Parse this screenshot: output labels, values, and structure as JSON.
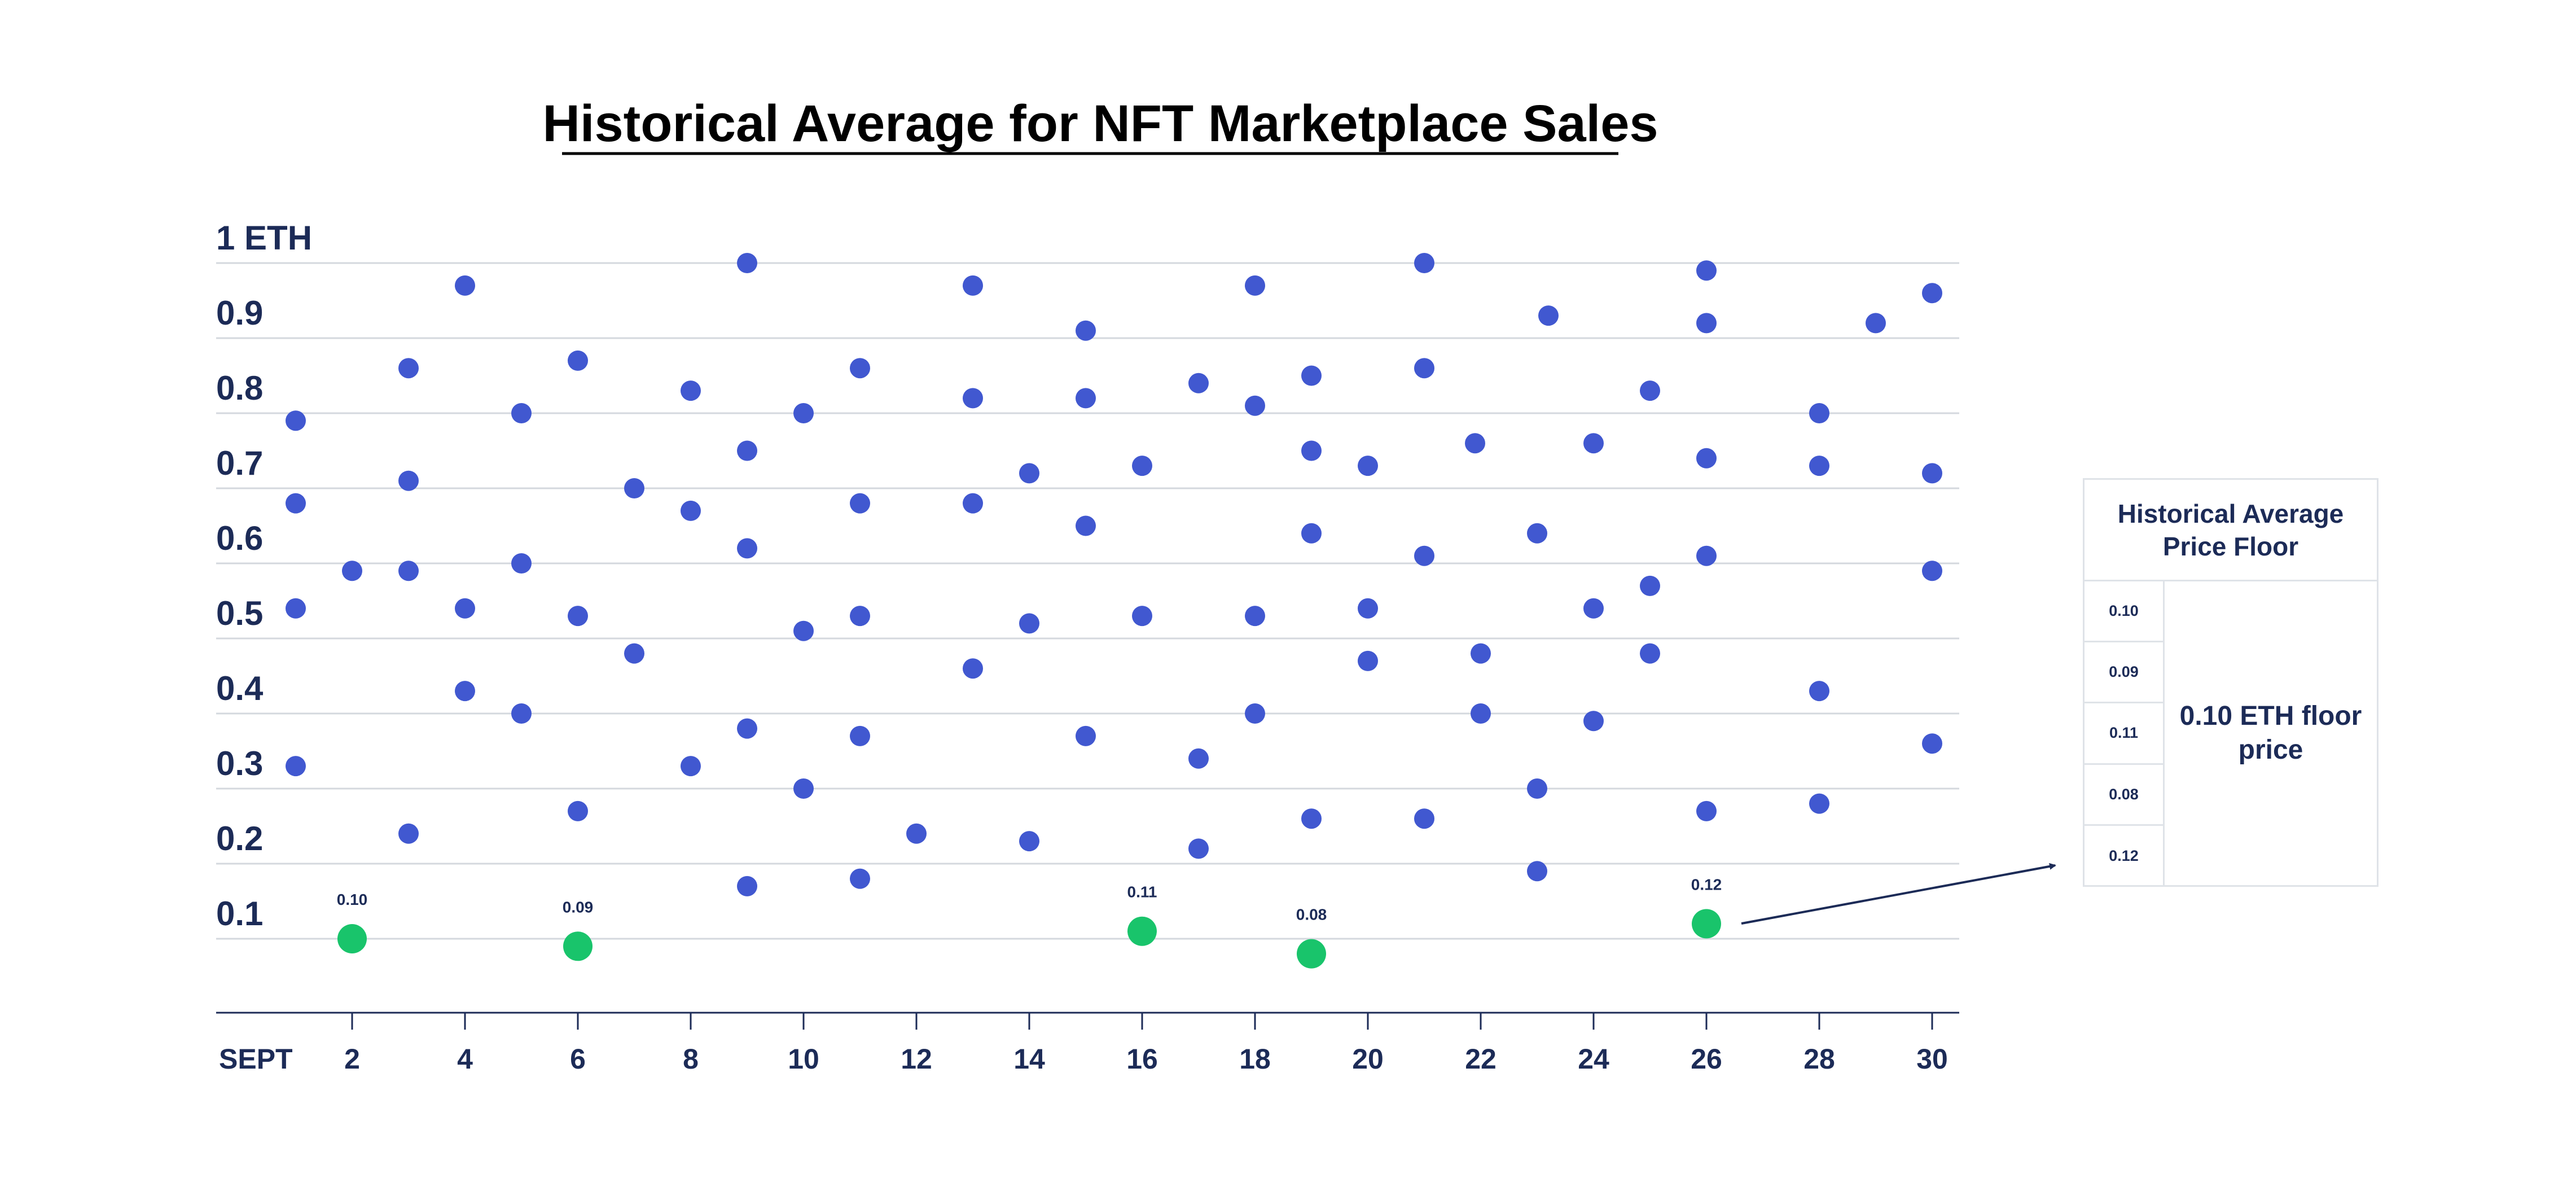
{
  "chart_data": {
    "type": "scatter",
    "title": "Historical Average for NFT Marketplace Sales",
    "y_tick_labels": [
      "1 ETH",
      "0.9",
      "0.8",
      "0.7",
      "0.6",
      "0.5",
      "0.4",
      "0.3",
      "0.2",
      "0.1"
    ],
    "y_tick_values": [
      1.0,
      0.9,
      0.8,
      0.7,
      0.6,
      0.5,
      0.4,
      0.3,
      0.2,
      0.1
    ],
    "x_tick_labels": [
      "SEPT",
      "2",
      "4",
      "6",
      "8",
      "10",
      "12",
      "14",
      "16",
      "18",
      "20",
      "22",
      "24",
      "26",
      "28",
      "30"
    ],
    "x_tick_values": [
      0,
      2,
      4,
      6,
      8,
      10,
      12,
      14,
      16,
      18,
      20,
      22,
      24,
      26,
      28,
      30
    ],
    "xlim": [
      0,
      30
    ],
    "ylim": [
      0,
      1.0
    ],
    "grid": true,
    "colors": {
      "sales": "#4158d0",
      "floor": "#19c46b",
      "text": "#1c2b57",
      "grid": "#d4d8de"
    },
    "series": [
      {
        "points": [
          {
            "x": 1,
            "y": 0.79
          },
          {
            "x": 1,
            "y": 0.68
          },
          {
            "x": 1,
            "y": 0.54
          },
          {
            "x": 1,
            "y": 0.33
          },
          {
            "x": 2,
            "y": 0.59
          },
          {
            "x": 3,
            "y": 0.86
          },
          {
            "x": 3,
            "y": 0.71
          },
          {
            "x": 3,
            "y": 0.59
          },
          {
            "x": 3,
            "y": 0.24
          },
          {
            "x": 4,
            "y": 0.97
          },
          {
            "x": 4,
            "y": 0.54
          },
          {
            "x": 4,
            "y": 0.43
          },
          {
            "x": 5,
            "y": 0.8
          },
          {
            "x": 5,
            "y": 0.6
          },
          {
            "x": 5,
            "y": 0.4
          },
          {
            "x": 6,
            "y": 0.87
          },
          {
            "x": 6,
            "y": 0.53
          },
          {
            "x": 6,
            "y": 0.27
          },
          {
            "x": 7,
            "y": 0.7
          },
          {
            "x": 7,
            "y": 0.48
          },
          {
            "x": 8,
            "y": 0.83
          },
          {
            "x": 8,
            "y": 0.67
          },
          {
            "x": 8,
            "y": 0.33
          },
          {
            "x": 9,
            "y": 1.0
          },
          {
            "x": 9,
            "y": 0.75
          },
          {
            "x": 9,
            "y": 0.62
          },
          {
            "x": 9,
            "y": 0.38
          },
          {
            "x": 9,
            "y": 0.17
          },
          {
            "x": 10,
            "y": 0.8
          },
          {
            "x": 10,
            "y": 0.51
          },
          {
            "x": 10,
            "y": 0.3
          },
          {
            "x": 11,
            "y": 0.86
          },
          {
            "x": 11,
            "y": 0.68
          },
          {
            "x": 11,
            "y": 0.53
          },
          {
            "x": 11,
            "y": 0.37
          },
          {
            "x": 11,
            "y": 0.18
          },
          {
            "x": 12,
            "y": 0.24
          },
          {
            "x": 13,
            "y": 0.97
          },
          {
            "x": 13,
            "y": 0.82
          },
          {
            "x": 13,
            "y": 0.68
          },
          {
            "x": 13,
            "y": 0.46
          },
          {
            "x": 14,
            "y": 0.72
          },
          {
            "x": 14,
            "y": 0.52
          },
          {
            "x": 14,
            "y": 0.23
          },
          {
            "x": 15,
            "y": 0.91
          },
          {
            "x": 15,
            "y": 0.82
          },
          {
            "x": 15,
            "y": 0.65
          },
          {
            "x": 15,
            "y": 0.37
          },
          {
            "x": 16,
            "y": 0.73
          },
          {
            "x": 16,
            "y": 0.53
          },
          {
            "x": 17,
            "y": 0.84
          },
          {
            "x": 17,
            "y": 0.34
          },
          {
            "x": 17,
            "y": 0.22
          },
          {
            "x": 18,
            "y": 0.97
          },
          {
            "x": 18,
            "y": 0.81
          },
          {
            "x": 18,
            "y": 0.53
          },
          {
            "x": 18,
            "y": 0.4
          },
          {
            "x": 19,
            "y": 0.85
          },
          {
            "x": 19,
            "y": 0.75
          },
          {
            "x": 19,
            "y": 0.64
          },
          {
            "x": 19,
            "y": 0.26
          },
          {
            "x": 20,
            "y": 0.73
          },
          {
            "x": 20,
            "y": 0.54
          },
          {
            "x": 20,
            "y": 0.47
          },
          {
            "x": 21,
            "y": 1.0
          },
          {
            "x": 21,
            "y": 0.86
          },
          {
            "x": 21,
            "y": 0.61
          },
          {
            "x": 21,
            "y": 0.26
          },
          {
            "x": 21.9,
            "y": 0.76
          },
          {
            "x": 22,
            "y": 0.48
          },
          {
            "x": 22,
            "y": 0.4
          },
          {
            "x": 23,
            "y": 0.64
          },
          {
            "x": 23,
            "y": 0.3
          },
          {
            "x": 23,
            "y": 0.19
          },
          {
            "x": 23.2,
            "y": 0.93
          },
          {
            "x": 24,
            "y": 0.76
          },
          {
            "x": 24,
            "y": 0.54
          },
          {
            "x": 24,
            "y": 0.39
          },
          {
            "x": 25,
            "y": 0.83
          },
          {
            "x": 25,
            "y": 0.57
          },
          {
            "x": 25,
            "y": 0.48
          },
          {
            "x": 26,
            "y": 0.99
          },
          {
            "x": 26,
            "y": 0.92
          },
          {
            "x": 26,
            "y": 0.74
          },
          {
            "x": 26,
            "y": 0.61
          },
          {
            "x": 26,
            "y": 0.27
          },
          {
            "x": 28,
            "y": 0.8
          },
          {
            "x": 28,
            "y": 0.73
          },
          {
            "x": 28,
            "y": 0.43
          },
          {
            "x": 28,
            "y": 0.28
          },
          {
            "x": 29,
            "y": 0.92
          },
          {
            "x": 30,
            "y": 0.96
          },
          {
            "x": 30,
            "y": 0.72
          },
          {
            "x": 30,
            "y": 0.59
          },
          {
            "x": 30,
            "y": 0.36
          }
        ]
      },
      {
        "points": [
          {
            "x": 2,
            "y": 0.1,
            "label": "0.10"
          },
          {
            "x": 6,
            "y": 0.09,
            "label": "0.09"
          },
          {
            "x": 16,
            "y": 0.11,
            "label": "0.11"
          },
          {
            "x": 19,
            "y": 0.08,
            "label": "0.08"
          },
          {
            "x": 26,
            "y": 0.12,
            "label": "0.12"
          }
        ]
      }
    ]
  },
  "floor_box": {
    "title": "Historical Average Price Floor",
    "rows": [
      "0.10",
      "0.09",
      "0.11",
      "0.08",
      "0.12"
    ],
    "result": "0.10 ETH floor price"
  }
}
